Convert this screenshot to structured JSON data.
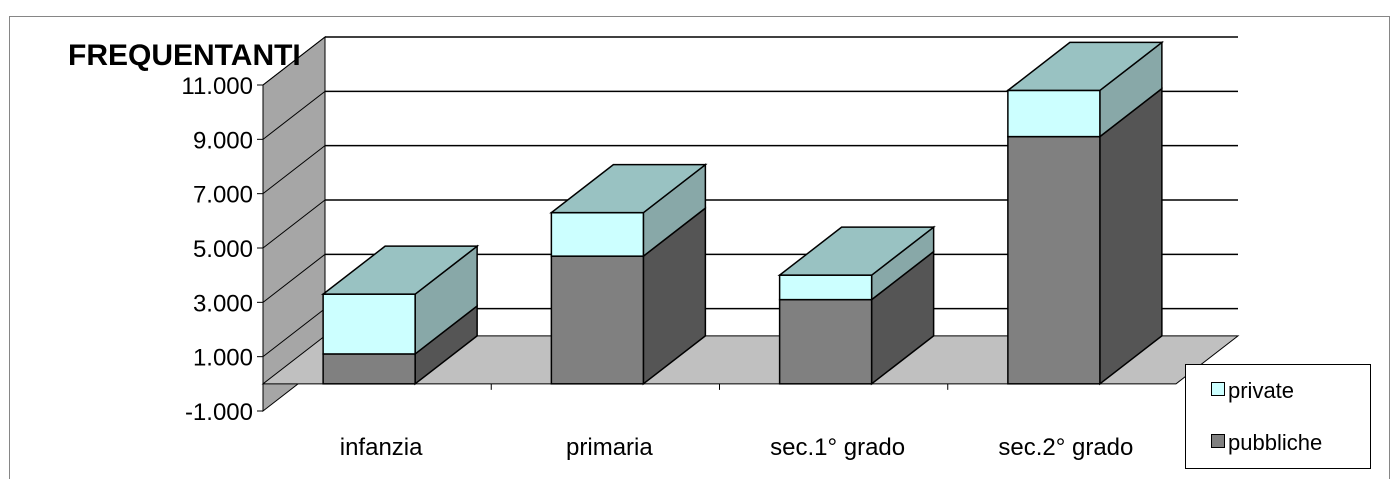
{
  "chart_data": {
    "type": "bar",
    "stacked": true,
    "three_d": true,
    "title": "FREQUENTANTI",
    "xlabel": "",
    "ylabel": "",
    "ylim": [
      -1000,
      11000
    ],
    "yticks": [
      -1000,
      1000,
      3000,
      5000,
      7000,
      9000,
      11000
    ],
    "ytick_labels": [
      "-1.000",
      "1.000",
      "3.000",
      "5.000",
      "7.000",
      "9.000",
      "11.000"
    ],
    "categories": [
      "infanzia",
      "primaria",
      "sec.1° grado",
      "sec.2° grado"
    ],
    "series": [
      {
        "name": "pubbliche",
        "values": [
          1100,
          4700,
          3100,
          9100
        ]
      },
      {
        "name": "private",
        "values": [
          2200,
          1600,
          900,
          1700
        ]
      }
    ],
    "grid": true,
    "legend_position": "bottom-right",
    "legend_order": [
      "private",
      "pubbliche"
    ],
    "colors": {
      "pubbliche_front": "#808080",
      "pubbliche_side": "#555555",
      "private_front": "#ccffff",
      "private_side": "#88a8a8",
      "top_face": "#99c2c2",
      "floor": "#c0c0c0",
      "side_wall": "#a6a6a6",
      "border": "#868686"
    }
  }
}
